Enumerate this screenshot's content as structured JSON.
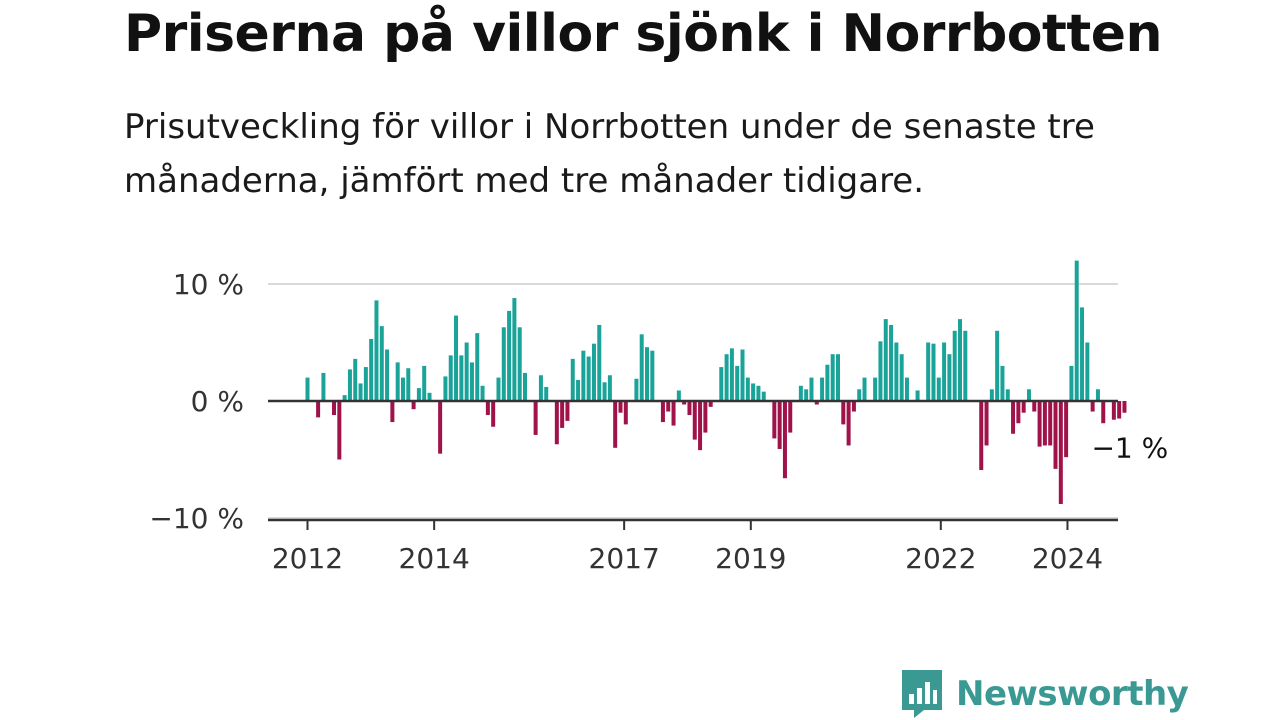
{
  "header": {
    "title": "Priserna på villor sjönk i Norrbotten",
    "subtitle": "Prisutveckling för villor i Norrbotten under de senaste tre månaderna, jämfört med tre månader tidigare."
  },
  "brand": {
    "name": "Newsworthy",
    "color": "#3a9a93",
    "icon": "bar-chart-speech-icon"
  },
  "colors": {
    "positive": "#1aa399",
    "negative": "#a0124a",
    "grid": "#d9d9d9",
    "axis": "#333333"
  },
  "chart_data": {
    "type": "bar",
    "title": "Priserna på villor sjönk i Norrbotten",
    "xlabel": "",
    "ylabel": "",
    "ylim": [
      -10,
      12
    ],
    "yticks": [
      {
        "value": 10,
        "label": "10 %"
      },
      {
        "value": 0,
        "label": "0 %"
      },
      {
        "value": -10,
        "label": "−10 %"
      }
    ],
    "xticks": [
      {
        "value": 2012,
        "label": "2012"
      },
      {
        "value": 2014,
        "label": "2014"
      },
      {
        "value": 2017,
        "label": "2017"
      },
      {
        "value": 2019,
        "label": "2019"
      },
      {
        "value": 2022,
        "label": "2022"
      },
      {
        "value": 2024,
        "label": "2024"
      }
    ],
    "start": {
      "year": 2012,
      "month": 0
    },
    "grid": true,
    "unit": "%",
    "values": [
      2.0,
      0,
      -1.4,
      2.4,
      0,
      -1.2,
      -5.0,
      0.5,
      2.7,
      3.6,
      1.5,
      2.9,
      5.3,
      8.6,
      6.4,
      4.4,
      -1.8,
      3.3,
      2.0,
      2.8,
      -0.7,
      1.1,
      3.0,
      0.7,
      0,
      -4.5,
      2.1,
      3.9,
      7.3,
      3.9,
      5.0,
      3.3,
      5.8,
      1.3,
      -1.2,
      -2.2,
      2.0,
      6.3,
      7.7,
      8.8,
      6.3,
      2.4,
      0,
      -2.9,
      2.2,
      1.2,
      0,
      -3.7,
      -2.3,
      -1.7,
      3.6,
      1.8,
      4.3,
      3.8,
      4.9,
      6.5,
      1.6,
      2.2,
      -4.0,
      -1.0,
      -2.0,
      0,
      1.9,
      5.7,
      4.6,
      4.3,
      0,
      -1.8,
      -0.9,
      -2.1,
      0.9,
      -0.3,
      -1.2,
      -3.3,
      -4.2,
      -2.7,
      -0.5,
      0,
      2.9,
      4.0,
      4.5,
      3.0,
      4.4,
      2.0,
      1.5,
      1.3,
      0.8,
      0,
      -3.2,
      -4.1,
      -6.6,
      -2.7,
      0,
      1.3,
      1.0,
      2.0,
      -0.3,
      2.0,
      3.1,
      4.0,
      4.0,
      -2.0,
      -3.8,
      -0.9,
      1.0,
      2.0,
      0,
      2.0,
      5.1,
      7.0,
      6.5,
      5.0,
      4.0,
      2.0,
      0,
      0.9,
      0,
      5.0,
      4.9,
      2.0,
      5.0,
      4.0,
      6.0,
      7.0,
      6.0,
      0,
      0,
      -5.9,
      -3.8,
      1.0,
      6.0,
      3.0,
      1.0,
      -2.8,
      -1.9,
      -1.0,
      1.0,
      -0.9,
      -3.9,
      -3.8,
      -3.8,
      -5.8,
      -8.8,
      -4.8,
      3.0,
      12.0,
      8.0,
      5.0,
      -0.9,
      1.0,
      -1.9,
      0,
      -1.6,
      -1.5,
      -1.0
    ],
    "annotation": {
      "label": "−1 %",
      "value": -1
    }
  }
}
